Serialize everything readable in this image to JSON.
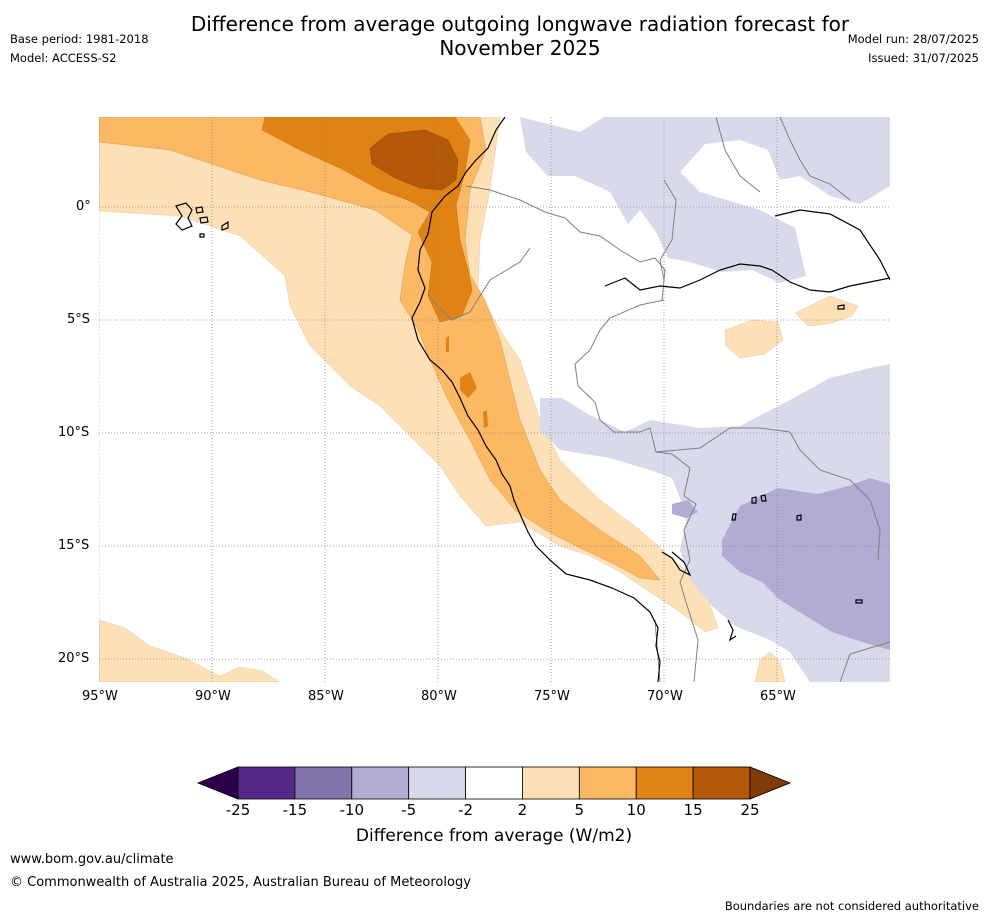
{
  "header": {
    "title_line1": "Difference from average outgoing longwave radiation forecast for",
    "title_line2": "November 2025",
    "base_period": "Base period: 1981-2018",
    "model": "Model: ACCESS-S2",
    "model_run": "Model run: 28/07/2025",
    "issued": "Issued: 31/07/2025"
  },
  "map": {
    "lat_labels": [
      "0°",
      "5°S",
      "10°S",
      "15°S",
      "20°S"
    ],
    "lon_labels": [
      "95°W",
      "90°W",
      "85°W",
      "80°W",
      "75°W",
      "70°W",
      "65°W"
    ],
    "colors": {
      "brown": "#b35806",
      "dark_orange": "#e08214",
      "orange": "#fdb863",
      "light_orange": "#fee0b6",
      "light_purple": "#d8daeb",
      "purple": "#b2abd2",
      "coast": "#000000",
      "border": "#808080"
    }
  },
  "colorbar": {
    "ticks": [
      "-25",
      "-15",
      "-10",
      "-5",
      "-2",
      "2",
      "5",
      "10",
      "15",
      "25"
    ],
    "bins": [
      "#2d004b",
      "#542788",
      "#8073ac",
      "#b2abd2",
      "#d8daeb",
      "#ffffff",
      "#fee0b6",
      "#fdb863",
      "#e08214",
      "#b35806",
      "#7f3b08"
    ],
    "title": "Difference from average (W/m2)"
  },
  "footer": {
    "website": "www.bom.gov.au/climate",
    "copyright": "© Commonwealth of Australia 2025, Australian Bureau of Meteorology",
    "disclaimer": "Boundaries are not considered authoritative"
  }
}
